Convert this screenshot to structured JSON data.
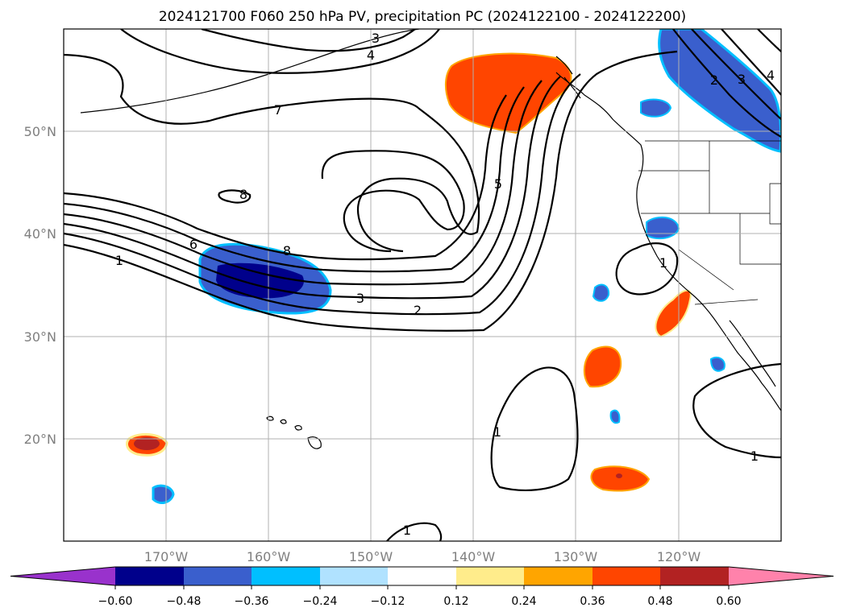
{
  "title": "2024121700 F060 250 hPa PV, precipitation PC (2024122100 - 2024122200)",
  "map": {
    "lon_range": [
      -180,
      -110
    ],
    "lat_range": [
      10,
      60
    ],
    "grid": true,
    "lat_labels": [
      "50°N",
      "40°N",
      "30°N",
      "20°N"
    ],
    "lon_labels": [
      "170°W",
      "160°W",
      "150°W",
      "140°W",
      "130°W",
      "120°W"
    ]
  },
  "contour_labels": [
    "3",
    "4",
    "7",
    "8",
    "5",
    "2",
    "3",
    "4",
    "6",
    "8",
    "1",
    "3",
    "2",
    "1",
    "1",
    "1",
    "1"
  ],
  "colorbar": {
    "ticks": [
      "−0.60",
      "−0.48",
      "−0.36",
      "−0.24",
      "−0.12",
      "0.12",
      "0.24",
      "0.36",
      "0.48",
      "0.60"
    ],
    "colors": [
      "#9932cc",
      "#00008b",
      "#3a5fcd",
      "#00bfff",
      "#b0e2ff",
      "#ffffff",
      "#ffec8b",
      "#ffa500",
      "#ff4500",
      "#b22222",
      "#ff82ab"
    ]
  }
}
